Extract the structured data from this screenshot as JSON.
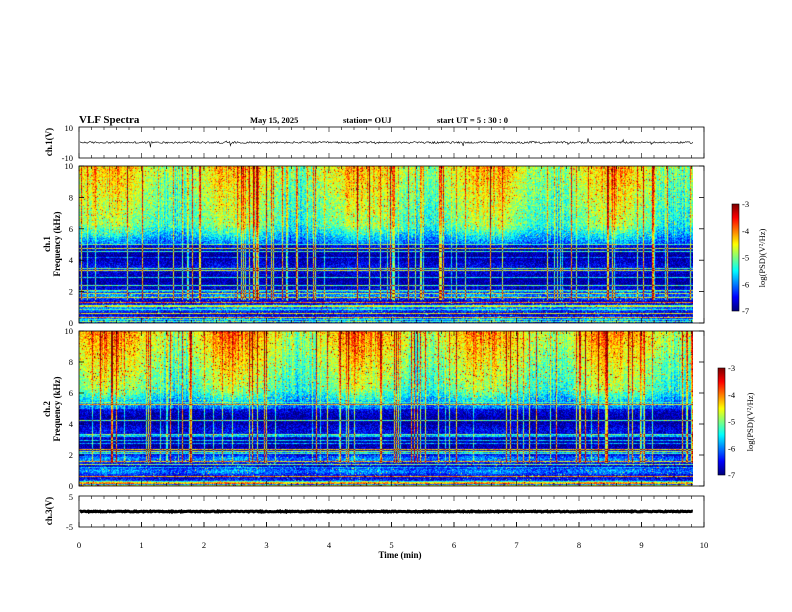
{
  "header": {
    "title": "VLF Spectra",
    "date": "May 15, 2025",
    "station": "station= OUJ",
    "start": "start  UT  =   5  : 30 : 0"
  },
  "chart_data": [
    {
      "type": "line",
      "name": "ch.1 waveform",
      "ylabel": "ch.1(V)",
      "ylim": [
        -10,
        10
      ],
      "yticks": [
        "10",
        "-10"
      ],
      "baseline": 0,
      "noise_amp": 0.6
    },
    {
      "type": "heatmap",
      "ylabel": "ch.1\nFrequency (kHz)",
      "ylim": [
        0,
        10
      ],
      "yticks": [
        "0",
        "2",
        "4",
        "6",
        "8",
        "10"
      ],
      "colorbar": {
        "label": "log(PSD)(V²/Hz)",
        "ticks": [
          "-3",
          "-4",
          "-5",
          "-6",
          "-7"
        ],
        "range": [
          -7,
          -3
        ]
      }
    },
    {
      "type": "heatmap",
      "ylabel": "ch.2\nFrequency (kHz)",
      "ylim": [
        0,
        10
      ],
      "yticks": [
        "0",
        "2",
        "4",
        "6",
        "8",
        "10"
      ],
      "colorbar": {
        "label": "log(PSD)(V²/Hz)",
        "ticks": [
          "-3",
          "-4",
          "-5",
          "-6",
          "-7"
        ],
        "range": [
          -7,
          -3
        ]
      }
    },
    {
      "type": "line",
      "name": "ch.3 waveform",
      "ylabel": "ch.3(V)",
      "ylim": [
        -5,
        5
      ],
      "yticks": [
        "5",
        "-5"
      ],
      "baseline": 0,
      "noise_amp": 0.15
    }
  ],
  "xaxis": {
    "label": "Time (min)",
    "ticks": [
      "0",
      "1",
      "2",
      "3",
      "4",
      "5",
      "6",
      "7",
      "8",
      "9",
      "10"
    ],
    "xlim": [
      0,
      10
    ],
    "data_end": 9.83
  },
  "colors": {
    "jet": [
      "#00008f",
      "#0000ff",
      "#00ffff",
      "#ffff00",
      "#ff0000",
      "#800000"
    ]
  }
}
